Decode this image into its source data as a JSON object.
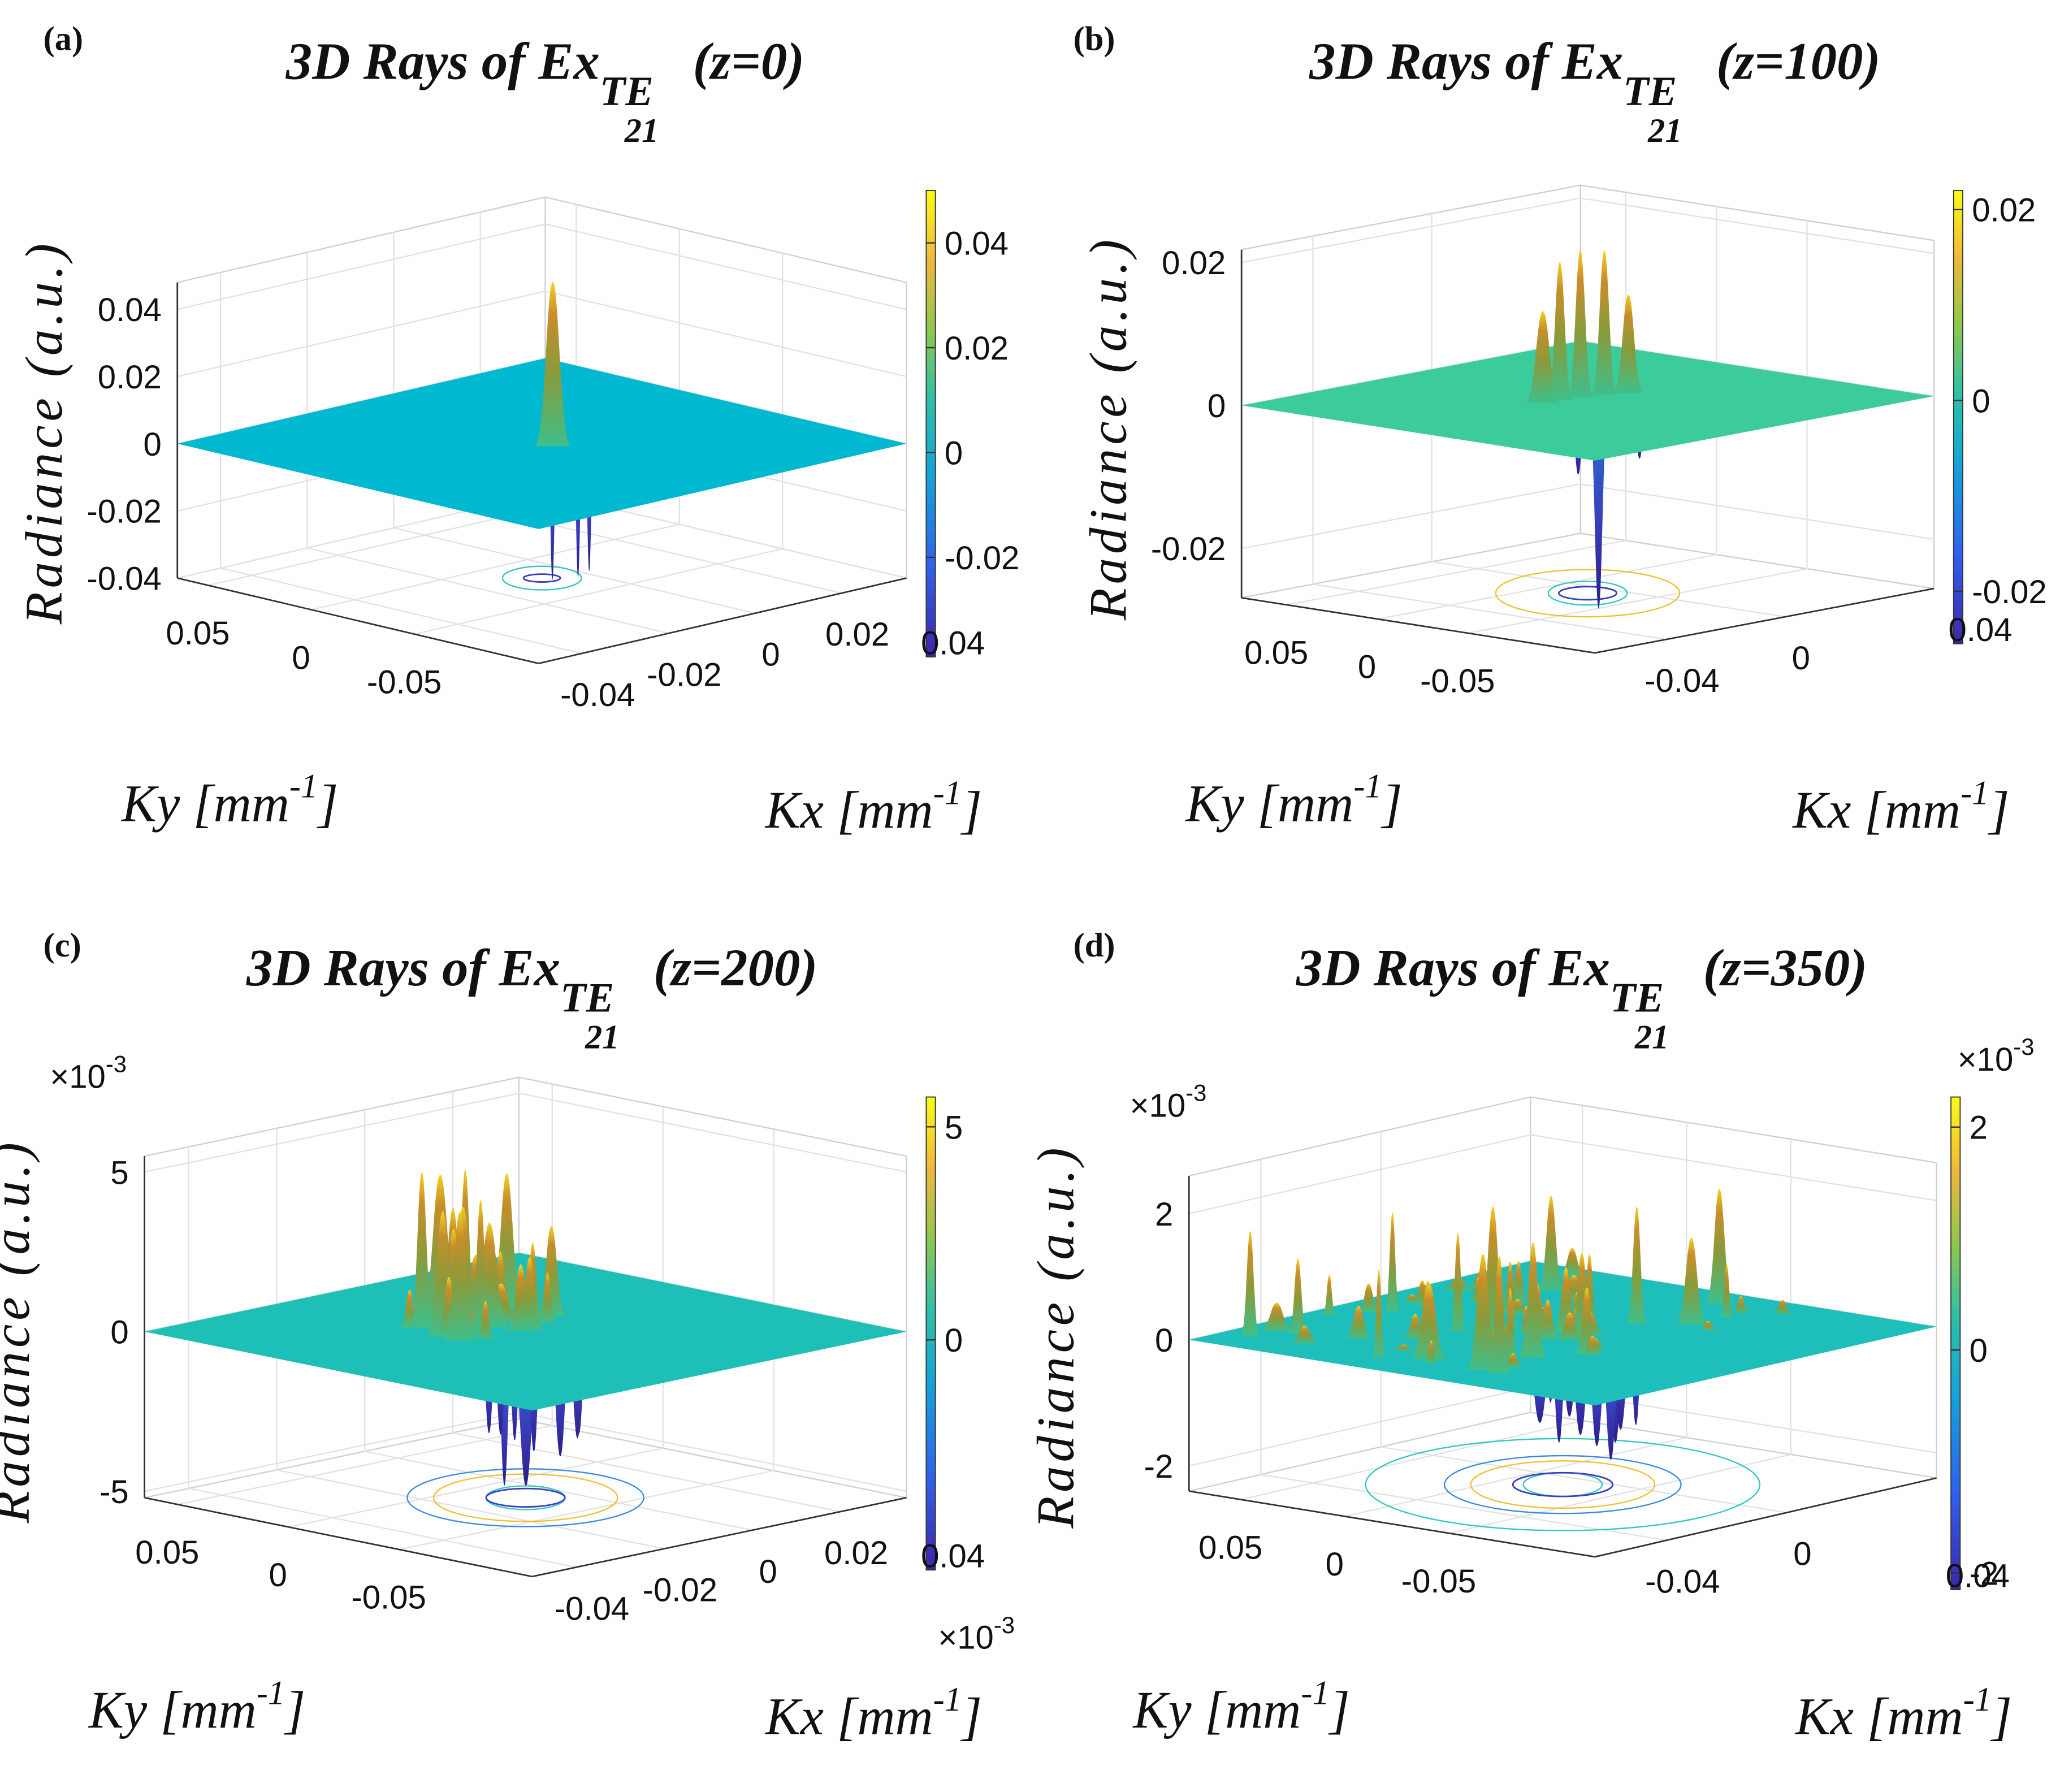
{
  "chart_data": [
    {
      "type": "surface",
      "panel_label": "(a)",
      "title": {
        "main": "3D Rays of Ex",
        "sub": "TE",
        "subsub": "21",
        "suffix": "(z=0)"
      },
      "zlabel": "Radiance (a.u.)",
      "xlabel": {
        "text": "Kx [mm",
        "sup": "-1",
        "end": "]"
      },
      "ylabel": {
        "text": "Ky [mm",
        "sup": "-1",
        "end": "]"
      },
      "xlim": [
        -0.05,
        0.035
      ],
      "xticks": [
        -0.04,
        -0.02,
        0,
        0.02
      ],
      "ylim": [
        -0.11,
        0.065
      ],
      "yticks": [
        0.05,
        0,
        -0.05
      ],
      "zlim": [
        -0.04,
        0.048
      ],
      "zticks": [
        0.04,
        0.02,
        0,
        -0.02,
        -0.04
      ],
      "clim": [
        -0.039,
        0.05
      ],
      "cticks": [
        0.04,
        0.02,
        0,
        -0.02
      ],
      "colorbar_extra_label": "0.04",
      "plane_color": "#00b8cf"
    },
    {
      "type": "surface",
      "panel_label": "(b)",
      "title": {
        "main": "3D Rays of Ex",
        "sub": "TE",
        "subsub": "21",
        "suffix": "(z=100)"
      },
      "zlabel": "Radiance (a.u.)",
      "xlabel": {
        "text": "Kx [mm",
        "sup": "-1",
        "end": "]"
      },
      "ylabel": {
        "text": "Ky [mm",
        "sup": "-1",
        "end": "]"
      },
      "xlim": [
        -0.064,
        0.05
      ],
      "xticks": [
        -0.04,
        0
      ],
      "ylim": [
        -0.12,
        0.075
      ],
      "yticks": [
        0.05,
        0,
        -0.05
      ],
      "zlim": [
        -0.0269,
        0.0218
      ],
      "zticks": [
        0.02,
        0,
        -0.02
      ],
      "clim": [
        -0.0255,
        0.022
      ],
      "cticks": [
        0.02,
        0,
        -0.02
      ],
      "colorbar_extra_label": "0.04",
      "plane_color": "#3ccc9c"
    },
    {
      "type": "surface",
      "panel_label": "(c)",
      "title": {
        "main": "3D Rays of Ex",
        "sub": "TE",
        "subsub": "21",
        "suffix": "(z=200)"
      },
      "zlabel": "Radiance (a.u.)",
      "xlabel": {
        "text": "Kx [mm",
        "sup": "-1",
        "end": "]"
      },
      "ylabel": {
        "text": "Ky [mm",
        "sup": "-1",
        "end": "]"
      },
      "xlim": [
        -0.05,
        0.035
      ],
      "xticks": [
        -0.04,
        -0.02,
        0,
        0.02
      ],
      "ylim": [
        -0.11,
        0.065
      ],
      "yticks": [
        0.05,
        0,
        -0.05
      ],
      "zlim": [
        -5.2,
        5.5
      ],
      "zticks": [
        5,
        0,
        -5
      ],
      "zexponent": {
        "base": "×10",
        "power": "-3"
      },
      "clim": [
        -5.4,
        5.7
      ],
      "cticks": [
        5,
        0
      ],
      "cexponent": {
        "base": "×10",
        "power": "-3"
      },
      "colorbar_extra_label": "0.04",
      "plane_color": "#1ebfb6"
    },
    {
      "type": "surface",
      "panel_label": "(d)",
      "title": {
        "main": "3D Rays of Ex",
        "sub": "TE",
        "subsub": "21",
        "suffix": "(z=350)"
      },
      "zlabel": "Radiance (a.u.)",
      "xlabel": {
        "text": "Kx [mm",
        "sup": "-1",
        "end": "]"
      },
      "ylabel": {
        "text": "Ky [mm",
        "sup": "-1",
        "end": "]"
      },
      "xlim": [
        -0.064,
        0.05
      ],
      "xticks": [
        -0.04,
        0
      ],
      "ylim": [
        -0.12,
        0.075
      ],
      "yticks": [
        0.05,
        0,
        -0.05
      ],
      "zlim": [
        -2.4,
        2.6
      ],
      "zticks": [
        2,
        0,
        -2
      ],
      "zexponent": {
        "base": "×10",
        "power": "-3"
      },
      "clim": [
        -2.15,
        2.27
      ],
      "cticks": [
        2,
        0,
        -2
      ],
      "cexponent": {
        "base": "×10",
        "power": "-3"
      },
      "colorbar_extra_label": "0.04",
      "plane_color": "#1ebfbb"
    }
  ]
}
